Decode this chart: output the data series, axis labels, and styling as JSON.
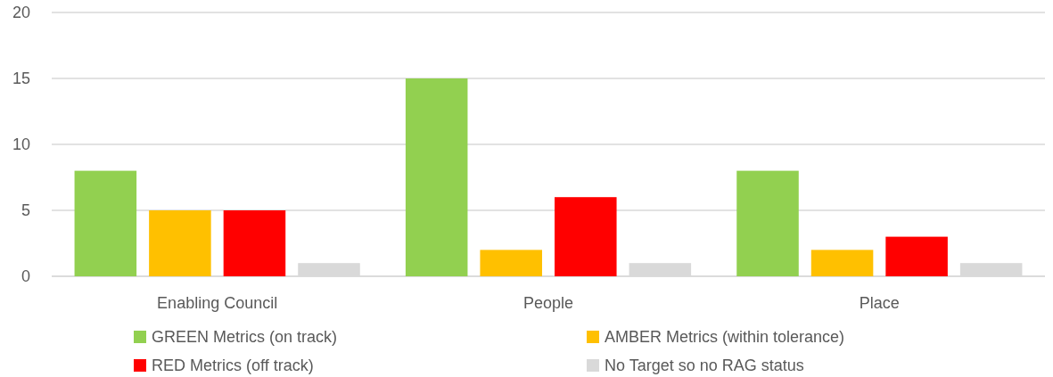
{
  "chart_data": {
    "type": "bar",
    "categories": [
      "Enabling Council",
      "People",
      "Place"
    ],
    "series": [
      {
        "name": "GREEN Metrics (on track)",
        "color": "#92d050",
        "values": [
          8,
          15,
          8
        ]
      },
      {
        "name": "AMBER Metrics (within tolerance)",
        "color": "#ffc000",
        "values": [
          5,
          2,
          2
        ]
      },
      {
        "name": "RED Metrics (off track)",
        "color": "#ff0000",
        "values": [
          5,
          6,
          3
        ]
      },
      {
        "name": "No Target so no RAG status",
        "color": "#d9d9d9",
        "values": [
          1,
          1,
          1
        ]
      }
    ],
    "ylim": [
      0,
      20
    ],
    "yticks": [
      0,
      5,
      10,
      15,
      20
    ],
    "grid": "y",
    "legend": "bottom"
  }
}
